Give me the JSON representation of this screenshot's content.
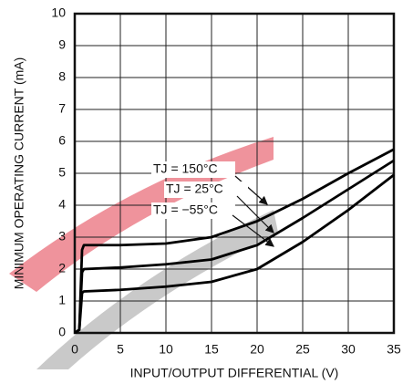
{
  "chart_data": {
    "type": "line",
    "x_label": "INPUT/OUTPUT DIFFERENTIAL (V)",
    "y_label": "MINIMUM OPERATING CURRENT (mA)",
    "x": [
      0,
      0.5,
      0.8,
      1,
      5,
      10,
      15,
      20,
      25,
      30,
      35
    ],
    "series": [
      {
        "name": "TJ = 150°C",
        "color": "#000000",
        "values": [
          0,
          0.1,
          2.6,
          2.75,
          2.75,
          2.8,
          3.0,
          3.5,
          4.2,
          5.0,
          5.75
        ]
      },
      {
        "name": "TJ = 25°C",
        "color": "#000000",
        "values": [
          0,
          0.1,
          1.9,
          2.0,
          2.05,
          2.15,
          2.3,
          2.75,
          3.6,
          4.5,
          5.4
        ]
      },
      {
        "name": "TJ = −55°C",
        "color": "#000000",
        "values": [
          0,
          0.1,
          1.25,
          1.3,
          1.35,
          1.45,
          1.6,
          2.0,
          2.85,
          3.85,
          4.95
        ]
      }
    ],
    "xlim": [
      0,
      35
    ],
    "xticks": [
      0,
      5,
      10,
      15,
      20,
      25,
      30,
      35
    ],
    "ylim": [
      0,
      10
    ],
    "yticks": [
      0,
      1,
      2,
      3,
      4,
      5,
      6,
      7,
      8,
      9,
      10
    ],
    "grid": true
  }
}
